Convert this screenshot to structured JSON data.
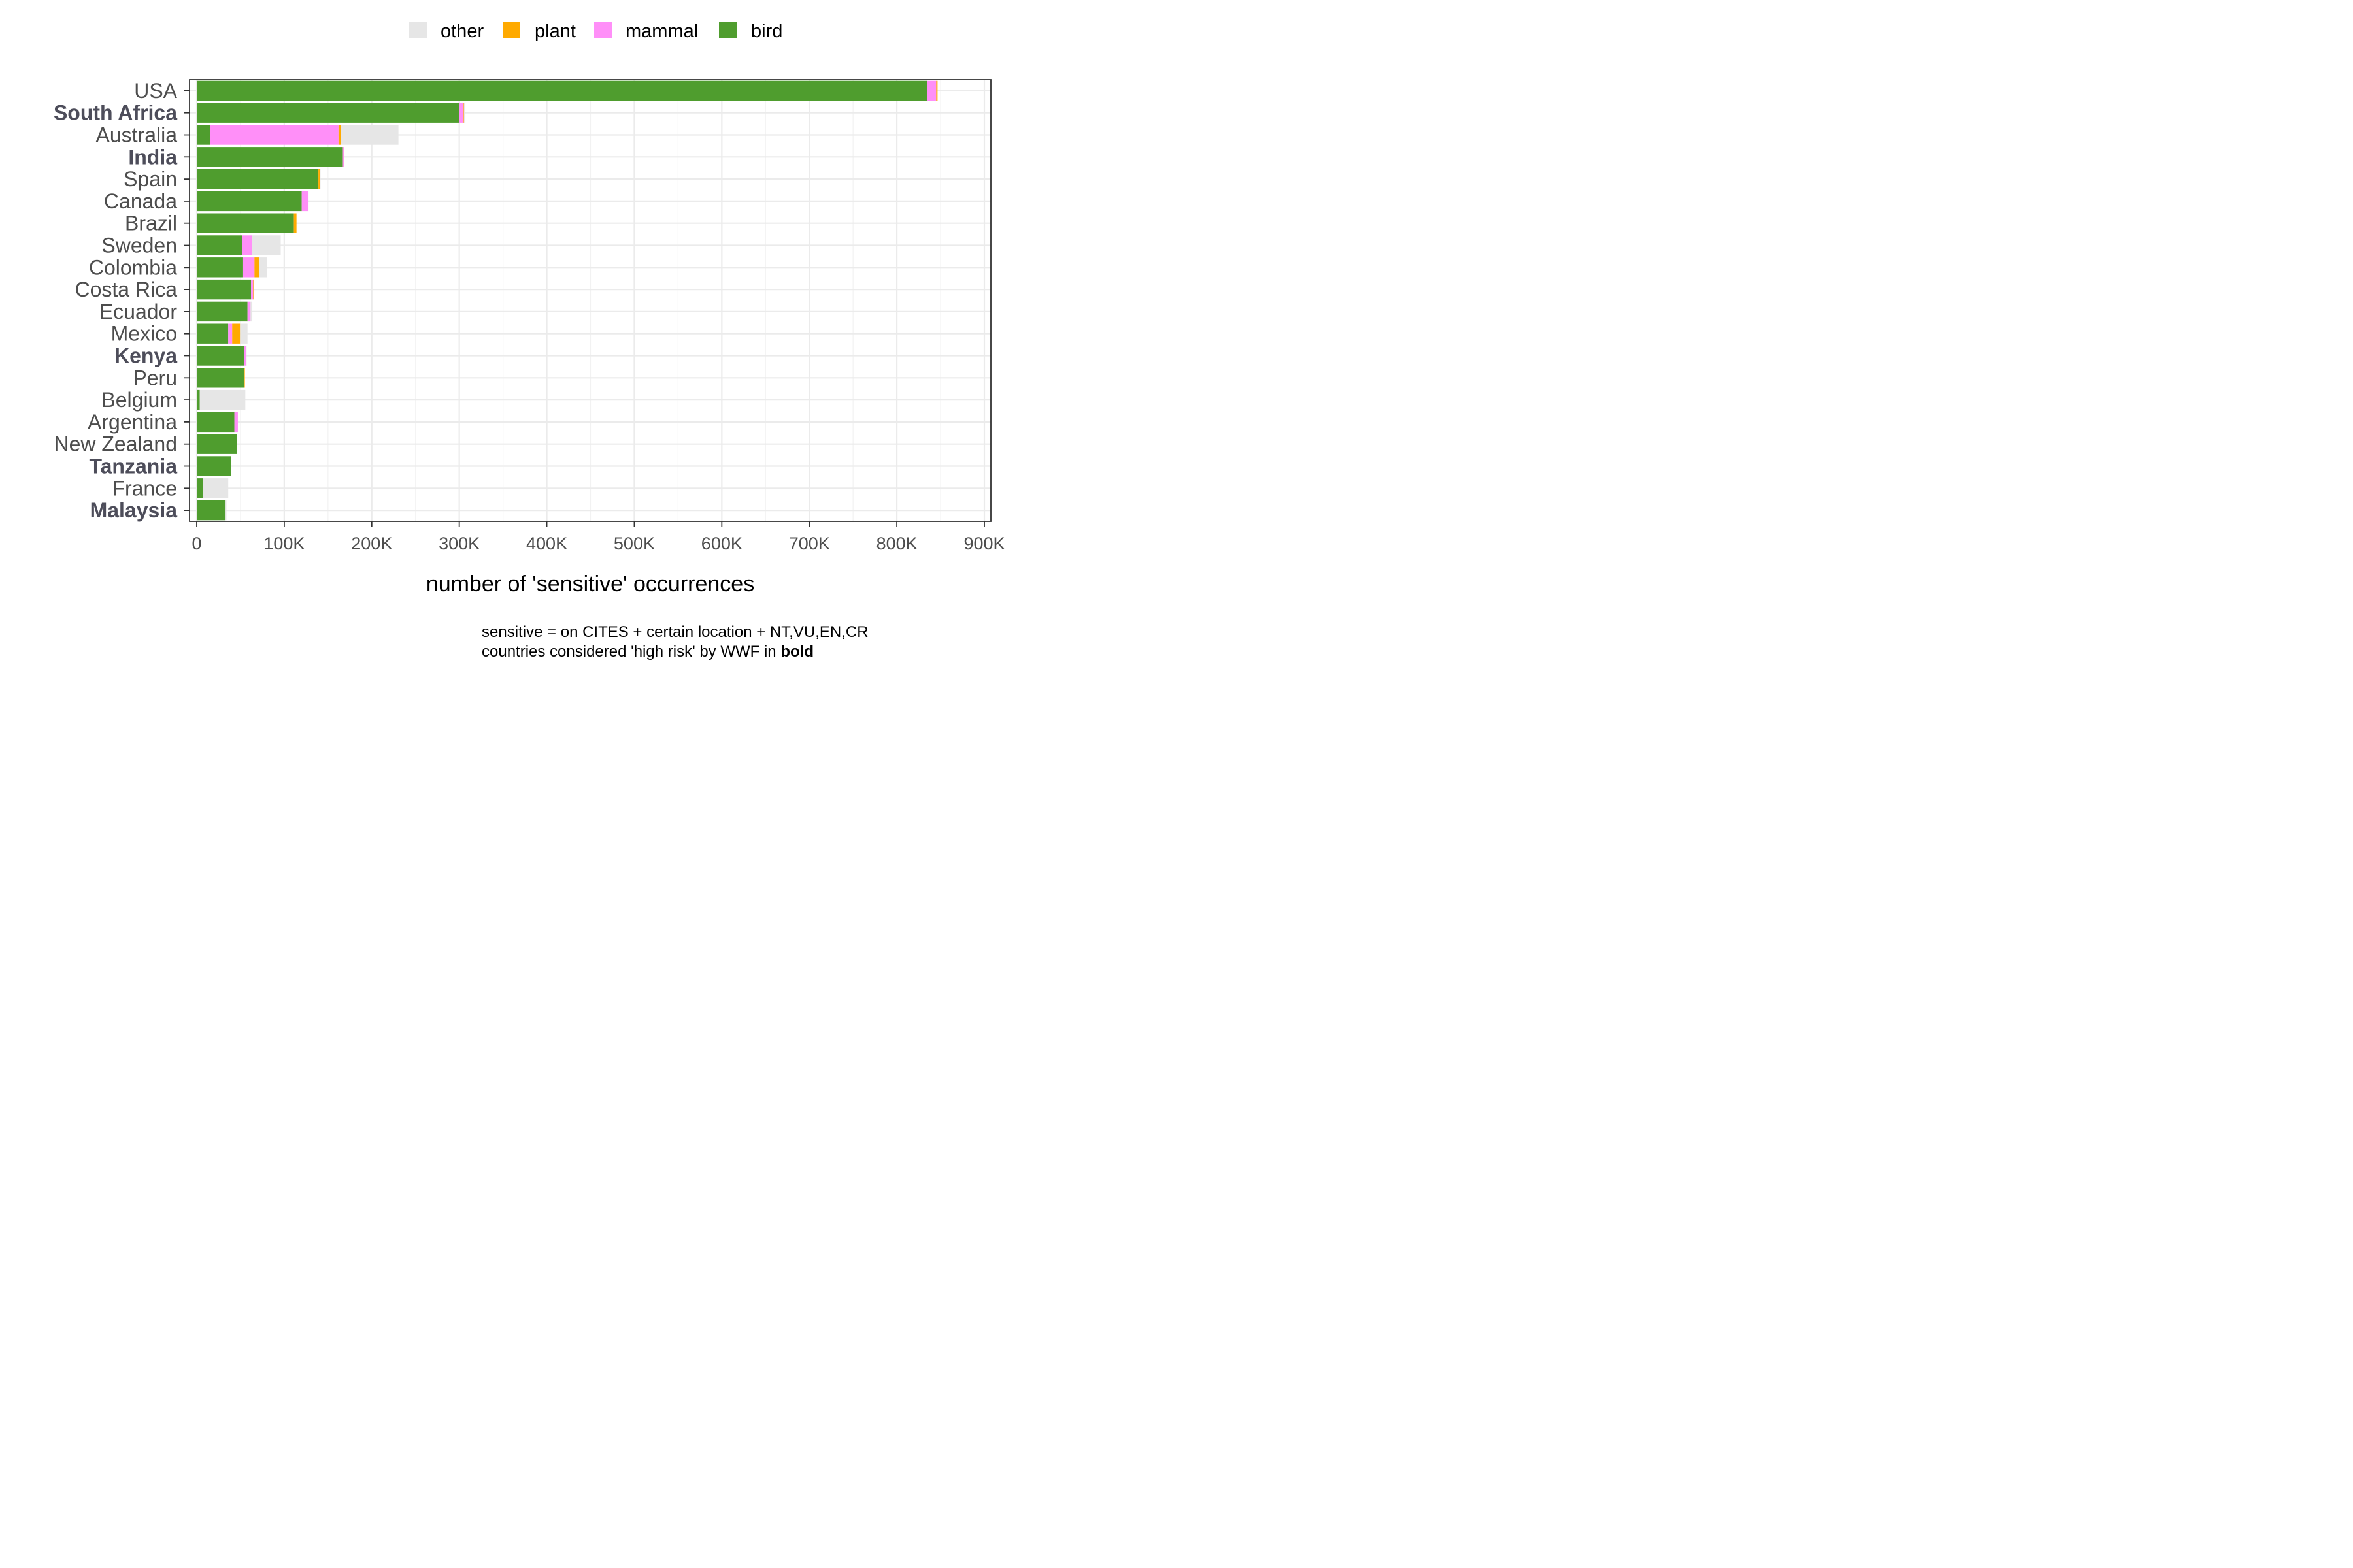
{
  "chart_data": {
    "type": "bar",
    "orientation": "horizontal",
    "stacked": true,
    "xlabel": "number of 'sensitive' occurrences",
    "ylabel": "",
    "xlim": [
      0,
      900000
    ],
    "xticks": [
      0,
      100000,
      200000,
      300000,
      400000,
      500000,
      600000,
      700000,
      800000,
      900000
    ],
    "xtick_labels": [
      "0",
      "100K",
      "200K",
      "300K",
      "400K",
      "500K",
      "600K",
      "700K",
      "800K",
      "900K"
    ],
    "grid": true,
    "legend_position": "top",
    "legend": [
      {
        "name": "other",
        "color": "#E6E6E6"
      },
      {
        "name": "plant",
        "color": "#FFAA00"
      },
      {
        "name": "mammal",
        "color": "#FF8FF8"
      },
      {
        "name": "bird",
        "color": "#4F9D2E"
      }
    ],
    "categories": [
      "USA",
      "South Africa",
      "Australia",
      "India",
      "Spain",
      "Canada",
      "Brazil",
      "Sweden",
      "Colombia",
      "Costa Rica",
      "Ecuador",
      "Mexico",
      "Kenya",
      "Peru",
      "Belgium",
      "Argentina",
      "New Zealand",
      "Tanzania",
      "France",
      "Malaysia"
    ],
    "bold_categories": [
      "South Africa",
      "India",
      "Kenya",
      "Tanzania",
      "Malaysia"
    ],
    "series": [
      {
        "name": "bird",
        "color": "#4F9D2E",
        "values": [
          835000,
          300000,
          15000,
          167000,
          139000,
          120000,
          111000,
          52000,
          53000,
          62000,
          58000,
          36000,
          54000,
          54000,
          3500,
          43000,
          46000,
          39000,
          7000,
          33000
        ]
      },
      {
        "name": "mammal",
        "color": "#FF8FF8",
        "values": [
          10000,
          5000,
          147000,
          1000,
          0,
          7000,
          0,
          11000,
          13000,
          2500,
          3500,
          4500,
          2000,
          500,
          0,
          4000,
          0,
          0,
          0,
          0
        ]
      },
      {
        "name": "plant",
        "color": "#FFAA00",
        "values": [
          1500,
          500,
          2500,
          500,
          1500,
          0,
          3000,
          0,
          5500,
          500,
          0,
          9000,
          0,
          500,
          0,
          0,
          0,
          500,
          0,
          0
        ]
      },
      {
        "name": "other",
        "color": "#E6E6E6",
        "values": [
          0,
          1500,
          66000,
          0,
          1000,
          0,
          0,
          33000,
          9000,
          500,
          2000,
          8500,
          1000,
          0,
          52000,
          0,
          0,
          0,
          29000,
          1000
        ]
      }
    ],
    "notes": [
      [
        {
          "text": "sensitive = on CITES + certain location + NT,VU,EN,CR",
          "bold": false
        }
      ],
      [
        {
          "text": "countries considered 'high risk' by WWF in ",
          "bold": false
        },
        {
          "text": "bold",
          "bold": true
        }
      ]
    ]
  }
}
